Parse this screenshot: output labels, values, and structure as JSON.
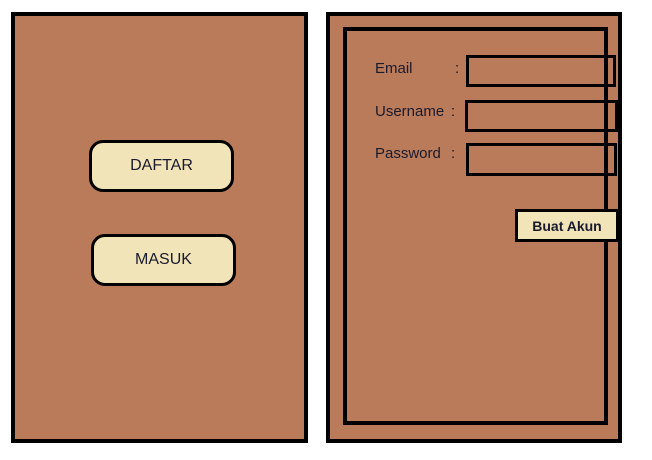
{
  "left_panel": {
    "daftar_label": "DAFTAR",
    "masuk_label": "MASUK"
  },
  "register_form": {
    "email_label": "Email",
    "email_value": "",
    "username_label": "Username",
    "username_value": "",
    "password_label": "Password",
    "password_value": "",
    "colon": ":",
    "submit_label": "Buat Akun"
  },
  "colors": {
    "panel_bg": "#b97b5a",
    "button_bg": "#f1e4b8",
    "border": "#000000",
    "text": "#1a1a2e"
  }
}
